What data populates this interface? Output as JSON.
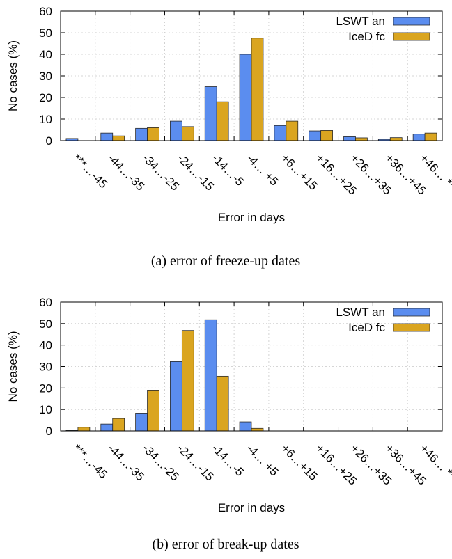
{
  "colors": {
    "lswt": "#5b8def",
    "iced": "#daa520"
  },
  "chart_data": [
    {
      "type": "bar",
      "caption": "(a) error of freeze-up dates",
      "xlabel": "Error in days",
      "ylabel": "No cases (%)",
      "ylim": [
        0,
        60
      ],
      "yticks": [
        0,
        10,
        20,
        30,
        40,
        50,
        60
      ],
      "grid": true,
      "legend_position": "top-right",
      "categories": [
        "***…-45",
        "-44…-35",
        "-34…-25",
        "-24…-15",
        "-14…-5",
        "-4… +5",
        "+6…+15",
        "+16…+25",
        "+26…+35",
        "+36…+45",
        "+46… ***"
      ],
      "series": [
        {
          "name": "LSWT an",
          "values": [
            1,
            3.5,
            5.7,
            9,
            25,
            40,
            7,
            4.5,
            1.8,
            0.6,
            3
          ]
        },
        {
          "name": "IceD fc",
          "values": [
            0,
            2.2,
            6,
            6.5,
            18,
            47.5,
            9,
            4.7,
            1.3,
            1.4,
            3.5
          ]
        }
      ]
    },
    {
      "type": "bar",
      "caption": "(b) error of break-up dates",
      "xlabel": "Error in days",
      "ylabel": "No cases (%)",
      "ylim": [
        0,
        60
      ],
      "yticks": [
        0,
        10,
        20,
        30,
        40,
        50,
        60
      ],
      "grid": true,
      "legend_position": "top-right",
      "categories": [
        "***…-45",
        "-44…-35",
        "-34…-25",
        "-24…-15",
        "-14…-5",
        "-4… +5",
        "+6…+15",
        "+16…+25",
        "+26…+35",
        "+36…+45",
        "+46… ***"
      ],
      "series": [
        {
          "name": "LSWT an",
          "values": [
            0.3,
            3.2,
            8.3,
            32.3,
            51.8,
            4.2,
            0,
            0,
            0,
            0,
            0
          ]
        },
        {
          "name": "IceD fc",
          "values": [
            1.7,
            5.8,
            19,
            46.8,
            25.5,
            1.2,
            0,
            0,
            0,
            0,
            0
          ]
        }
      ]
    }
  ]
}
